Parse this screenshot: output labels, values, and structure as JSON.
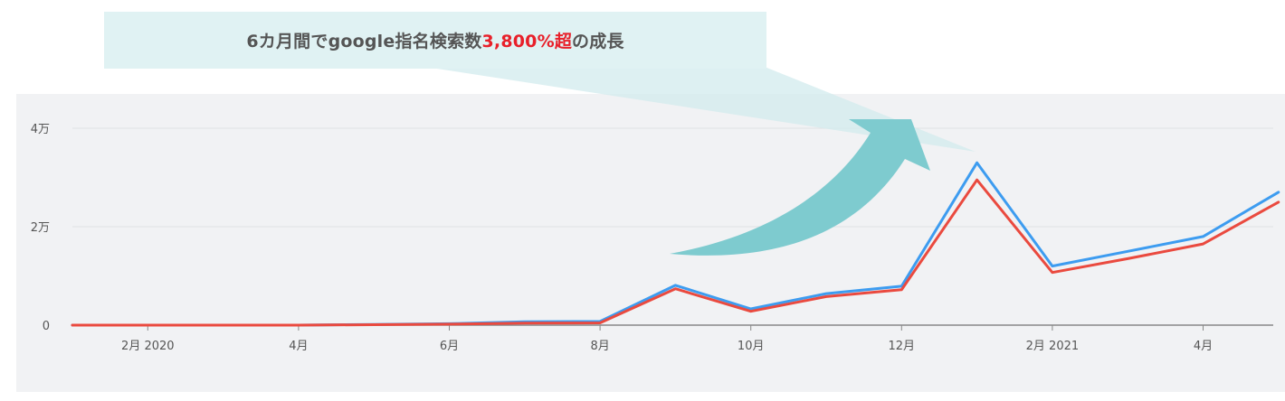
{
  "banner": {
    "text_before": "6カ月間でgoogle指名検索数",
    "highlight": "3,800%超",
    "text_after": "の成長"
  },
  "colors": {
    "series_blue": "#3d9cf0",
    "series_red": "#ea4a3f",
    "arrow": "#7ecbcf",
    "banner_bg": "#e0f2f3",
    "highlight": "#e8202a",
    "plot_bg": "#f1f2f4"
  },
  "chart_data": {
    "type": "line",
    "title": "",
    "xlabel": "",
    "ylabel": "",
    "ylim": [
      0,
      40000
    ],
    "grid": true,
    "x": [
      "2020-01",
      "2020-02",
      "2020-03",
      "2020-04",
      "2020-05",
      "2020-06",
      "2020-07",
      "2020-08",
      "2020-09",
      "2020-10",
      "2020-11",
      "2020-12",
      "2021-01",
      "2021-02",
      "2021-03",
      "2021-04",
      "2021-05"
    ],
    "series": [
      {
        "color": "#3d9cf0",
        "values": [
          0,
          0,
          0,
          0,
          150,
          300,
          700,
          750,
          8100,
          3300,
          6400,
          7900,
          33000,
          12000,
          15000,
          18000,
          27000
        ]
      },
      {
        "color": "#ea4a3f",
        "values": [
          0,
          0,
          0,
          0,
          100,
          200,
          400,
          450,
          7400,
          2800,
          5800,
          7200,
          29500,
          10700,
          13500,
          16500,
          25000
        ]
      }
    ],
    "y_ticks": [
      {
        "value": 0,
        "label": "0"
      },
      {
        "value": 20000,
        "label": "2万"
      },
      {
        "value": 40000,
        "label": "4万"
      }
    ],
    "x_ticks": [
      {
        "x": "2020-02",
        "label": "2月 2020"
      },
      {
        "x": "2020-04",
        "label": "4月"
      },
      {
        "x": "2020-06",
        "label": "6月"
      },
      {
        "x": "2020-08",
        "label": "8月"
      },
      {
        "x": "2020-10",
        "label": "10月"
      },
      {
        "x": "2020-12",
        "label": "12月"
      },
      {
        "x": "2021-02",
        "label": "2月 2021"
      },
      {
        "x": "2021-04",
        "label": "4月"
      }
    ]
  }
}
